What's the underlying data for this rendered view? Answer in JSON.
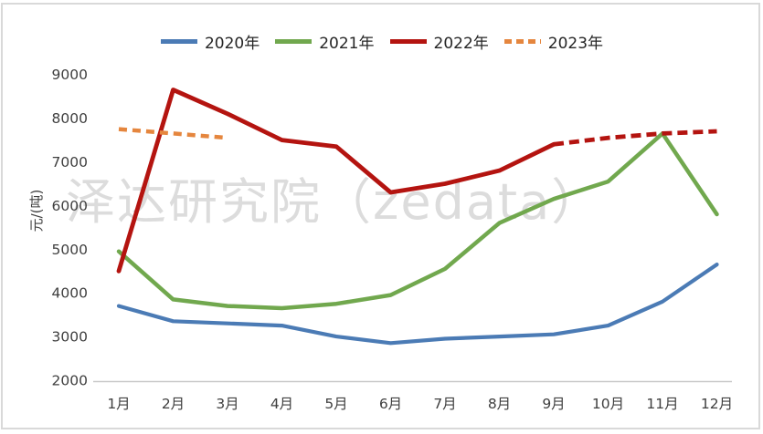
{
  "watermark": {
    "text": "泽达研究院（zedata）"
  },
  "axis_color": "#c9c9c9",
  "tick_color": "#3f3f3f",
  "chart_data": {
    "type": "line",
    "title": "",
    "ylabel": "元/(吨)",
    "xlabel": "",
    "ylim": [
      2000,
      9000
    ],
    "yticks": [
      2000,
      3000,
      4000,
      5000,
      6000,
      7000,
      8000,
      9000
    ],
    "x_categories": [
      "1月",
      "2月",
      "3月",
      "4月",
      "5月",
      "6月",
      "7月",
      "8月",
      "9月",
      "10月",
      "11月",
      "12月"
    ],
    "grid": false,
    "legend_position": "top-center",
    "series": [
      {
        "name": "2020年",
        "color": "#4b7bb5",
        "line_style": "solid",
        "values": [
          3700,
          3350,
          3300,
          3250,
          3000,
          2850,
          2950,
          3000,
          3050,
          3250,
          3800,
          4650
        ]
      },
      {
        "name": "2021年",
        "color": "#71a84e",
        "line_style": "solid",
        "values": [
          4950,
          3850,
          3700,
          3650,
          3750,
          3950,
          4550,
          5600,
          6150,
          6550,
          7650,
          5800
        ]
      },
      {
        "name": "2022年",
        "color": "#b41410",
        "line_style": "solid-then-dashed",
        "dashed_from": "9月",
        "values": [
          4500,
          8650,
          8100,
          7500,
          7350,
          6300,
          6500,
          6800,
          7400,
          7550,
          7650,
          7700
        ]
      },
      {
        "name": "2023年",
        "color": "#e5863e",
        "line_style": "dashed",
        "values": [
          7750,
          7650,
          7550,
          null,
          null,
          null,
          null,
          null,
          null,
          null,
          null,
          null
        ]
      }
    ]
  }
}
